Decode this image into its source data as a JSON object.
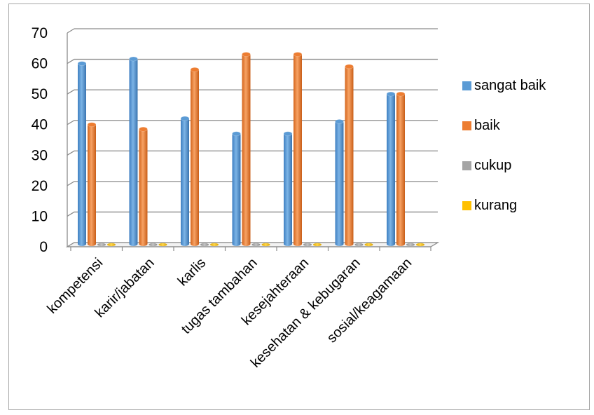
{
  "chart_data": {
    "type": "bar",
    "title": "",
    "xlabel": "",
    "ylabel": "",
    "categories": [
      "kompetensi",
      "karir/jabatan",
      "karlis",
      "tugas tambahan",
      "kesejahteraan",
      "kesehatan & kebugaran",
      "sosial/keagamaan"
    ],
    "series": [
      {
        "name": "sangat baik",
        "color": "#5b9bd5",
        "values": [
          60,
          61.5,
          42,
          37,
          37,
          41,
          50
        ]
      },
      {
        "name": "baik",
        "color": "#ed7d31",
        "values": [
          40,
          38.5,
          58,
          63,
          63,
          59,
          50
        ]
      },
      {
        "name": "cukup",
        "color": "#a5a5a5",
        "values": [
          0,
          0,
          0,
          0,
          0,
          0,
          0
        ]
      },
      {
        "name": "kurang",
        "color": "#ffc000",
        "values": [
          0,
          0,
          0,
          0,
          0,
          0,
          0
        ]
      }
    ],
    "ylim": [
      0,
      70
    ],
    "yticks": [
      0,
      10,
      20,
      30,
      40,
      50,
      60,
      70
    ],
    "grid": true,
    "legend": "right"
  }
}
